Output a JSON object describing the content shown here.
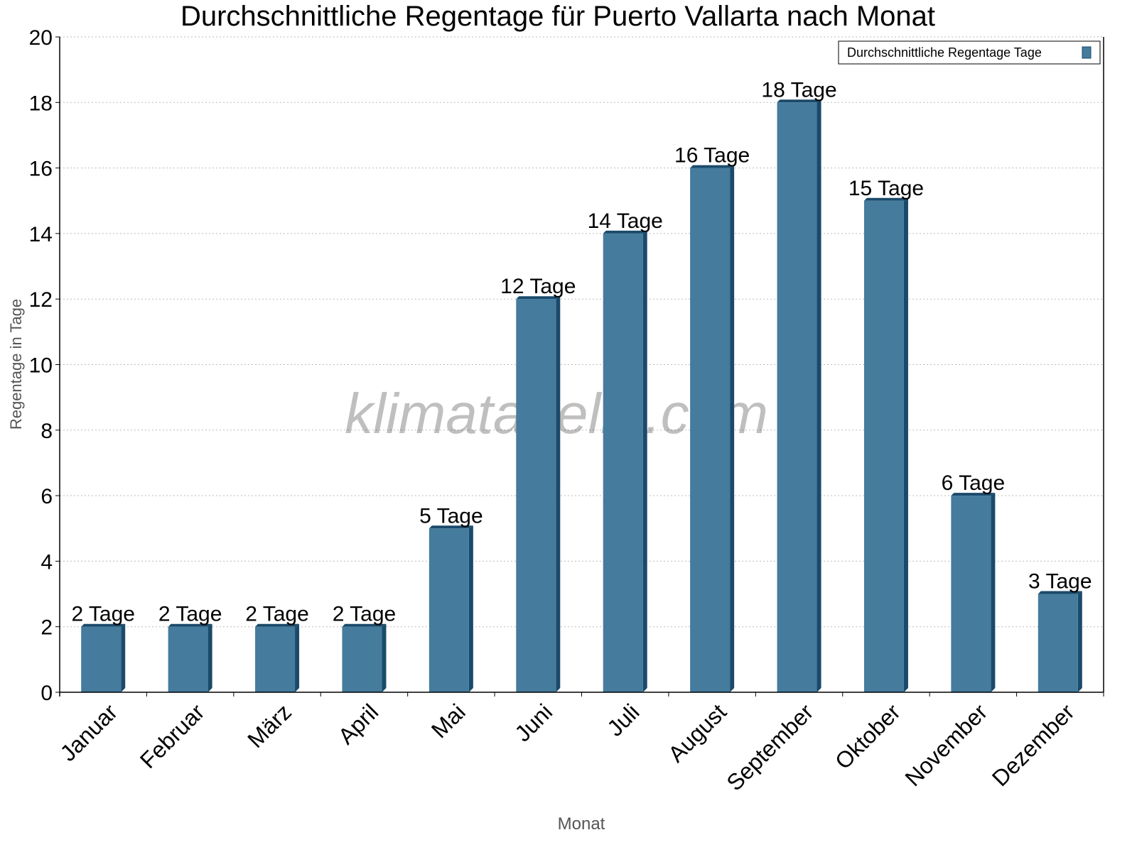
{
  "chart_data": {
    "type": "bar",
    "title": "Durchschnittliche Regentage für Puerto Vallarta nach Monat",
    "xlabel": "Monat",
    "ylabel": "Regentage in Tage",
    "ylim": [
      0,
      20
    ],
    "yticks": [
      0,
      2,
      4,
      6,
      8,
      10,
      12,
      14,
      16,
      18,
      20
    ],
    "grid": true,
    "legend_position": "top-right",
    "categories": [
      "Januar",
      "Februar",
      "März",
      "April",
      "Mai",
      "Juni",
      "Juli",
      "August",
      "September",
      "Oktober",
      "November",
      "Dezember"
    ],
    "series": [
      {
        "name": "Durchschnittliche Regentage Tage",
        "values": [
          2,
          2,
          2,
          2,
          5,
          12,
          14,
          16,
          18,
          15,
          6,
          3
        ],
        "labels": [
          "2 Tage",
          "2 Tage",
          "2 Tage",
          "2 Tage",
          "5 Tage",
          "12 Tage",
          "14 Tage",
          "16 Tage",
          "18 Tage",
          "15 Tage",
          "6 Tage",
          "3 Tage"
        ],
        "color": "#457b9d",
        "side_color": "#1a4a6b"
      }
    ],
    "watermark": "klimatabelle.com"
  }
}
